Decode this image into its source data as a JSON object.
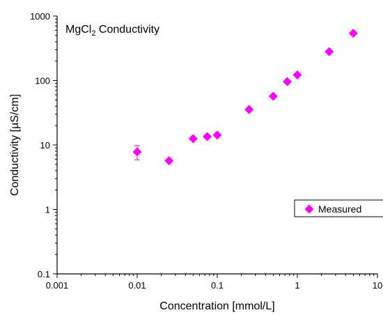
{
  "chart_data": {
    "type": "scatter",
    "title_main": "MgCl",
    "title_sub": "2",
    "title_rest": " Conductivity",
    "xlabel": "Concentration [mmol/L]",
    "ylabel": "Conductivity  [µS/cm]",
    "xscale": "log",
    "yscale": "log",
    "xlim": [
      0.001,
      10
    ],
    "ylim": [
      0.1,
      1000
    ],
    "xticks": [
      0.001,
      0.01,
      0.1,
      1,
      10
    ],
    "xtick_labels": [
      "0.001",
      "0.01",
      "0.1",
      "1",
      "10"
    ],
    "yticks": [
      0.1,
      1,
      10,
      100,
      1000
    ],
    "ytick_labels": [
      "0.1",
      "1",
      "10",
      "100",
      "1000"
    ],
    "grid": false,
    "legend_position": "right",
    "marker_color": "#ff00ff",
    "series": [
      {
        "name": "Measured",
        "marker": "diamond",
        "x": [
          0.01,
          0.025,
          0.05,
          0.075,
          0.1,
          0.25,
          0.5,
          0.75,
          1,
          2.5,
          5
        ],
        "y": [
          7.8,
          5.7,
          12.5,
          13.5,
          14.2,
          35.5,
          57,
          96,
          122,
          280,
          540
        ],
        "y_err_low": [
          5.9,
          null,
          null,
          null,
          null,
          null,
          null,
          null,
          null,
          null,
          null
        ],
        "y_err_high": [
          9.8,
          null,
          null,
          null,
          null,
          null,
          null,
          null,
          null,
          null,
          null
        ]
      }
    ]
  }
}
